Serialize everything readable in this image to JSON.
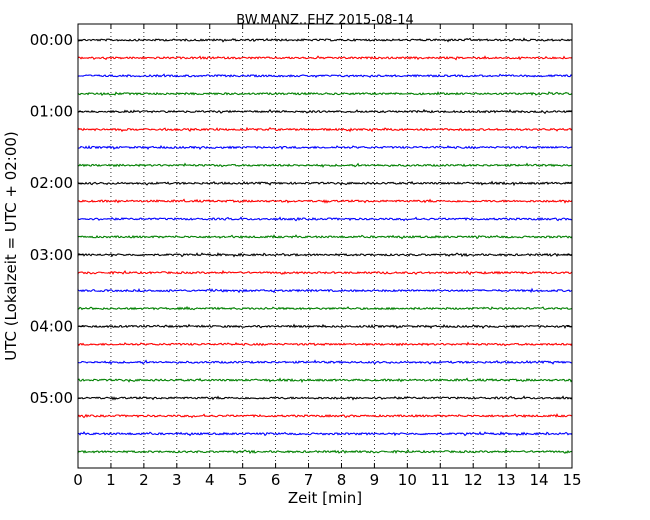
{
  "chart_data": {
    "type": "line",
    "title": "BW.MANZ..EHZ 2015-08-14",
    "xlabel": "Zeit  [min]",
    "ylabel": "UTC (Lokalzeit = UTC + 02:00)",
    "xlim": [
      0,
      15
    ],
    "x_ticks": [
      "0",
      "1",
      "2",
      "3",
      "4",
      "5",
      "6",
      "7",
      "8",
      "9",
      "10",
      "11",
      "12",
      "13",
      "14",
      "15"
    ],
    "y_tick_labels": [
      "00:00",
      "01:00",
      "02:00",
      "03:00",
      "04:00",
      "05:00"
    ],
    "trace_count": 24,
    "trace_interval_min": 15,
    "trace_colors": [
      "#000000",
      "#ff0000",
      "#0000ff",
      "#008000"
    ],
    "grid": "vertical dotted at each minute"
  }
}
